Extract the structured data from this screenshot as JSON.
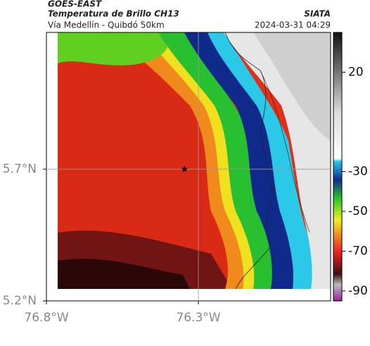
{
  "header": {
    "source": "GOES-EAST",
    "title": "Temperatura de Brillo CH13",
    "brand": "SIATA",
    "subtitle": "Vía Medellín - Quibdó 50km",
    "timestamp": "2024-03-31 04:29"
  },
  "map": {
    "xlim": [
      -76.8,
      -75.865
    ],
    "ylim": [
      5.2,
      6.219
    ],
    "xticks": [
      {
        "value": -76.8,
        "label": "76.8°W"
      },
      {
        "value": -76.3,
        "label": "76.3°W"
      }
    ],
    "yticks": [
      {
        "value": 5.7,
        "label": "5.7°N"
      },
      {
        "value": 5.2,
        "label": "5.2°N"
      }
    ],
    "grid": [
      {
        "lon": -76.3
      },
      {
        "lat": 5.7
      }
    ],
    "marker": {
      "lon": -76.346,
      "lat": 5.7
    }
  },
  "colorbar": {
    "clim": [
      -95,
      40
    ],
    "ticks": [
      20,
      -30,
      -50,
      -70,
      -90
    ]
  }
}
